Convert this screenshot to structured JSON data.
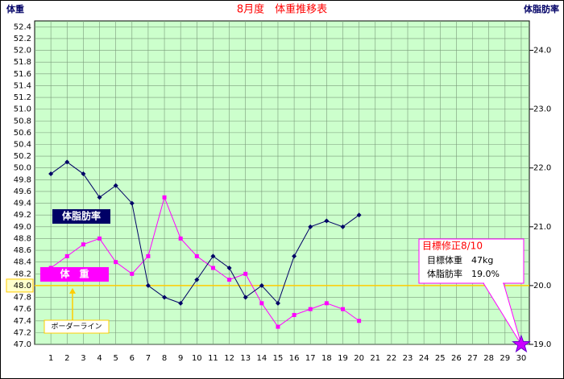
{
  "chart_data": {
    "type": "line",
    "title": "8月度　体重推移表",
    "ylabel": "体重",
    "y2label": "体脂肪率",
    "x": [
      1,
      2,
      3,
      4,
      5,
      6,
      7,
      8,
      9,
      10,
      11,
      12,
      13,
      14,
      15,
      16,
      17,
      18,
      19,
      20,
      21,
      22,
      23,
      24,
      25,
      26,
      27,
      28,
      29,
      30
    ],
    "xlim": [
      0,
      30.5
    ],
    "xticks": [
      1,
      2,
      3,
      4,
      5,
      6,
      7,
      8,
      9,
      10,
      11,
      12,
      13,
      14,
      15,
      16,
      17,
      18,
      19,
      20,
      21,
      22,
      23,
      24,
      25,
      26,
      27,
      28,
      29,
      30
    ],
    "ylim": [
      47.0,
      52.5
    ],
    "yticks": [
      {
        "value": 47.0,
        "label": "47.0"
      },
      {
        "value": 47.2,
        "label": "47.2"
      },
      {
        "value": 47.4,
        "label": "47.4"
      },
      {
        "value": 47.6,
        "label": "47.6"
      },
      {
        "value": 47.8,
        "label": "47.8"
      },
      {
        "value": 48.0,
        "label": "48.0"
      },
      {
        "value": 48.2,
        "label": "48.2"
      },
      {
        "value": 48.4,
        "label": "48.4"
      },
      {
        "value": 48.6,
        "label": "48.6"
      },
      {
        "value": 48.8,
        "label": "48.8"
      },
      {
        "value": 49.0,
        "label": "49.0"
      },
      {
        "value": 49.2,
        "label": "49.2"
      },
      {
        "value": 49.4,
        "label": "49.4"
      },
      {
        "value": 49.6,
        "label": "49.6"
      },
      {
        "value": 49.8,
        "label": "49.8"
      },
      {
        "value": 50.0,
        "label": "50.0"
      },
      {
        "value": 50.2,
        "label": "50.2"
      },
      {
        "value": 50.4,
        "label": "50.4"
      },
      {
        "value": 50.6,
        "label": "50.6"
      },
      {
        "value": 50.8,
        "label": "50.8"
      },
      {
        "value": 51.0,
        "label": "51.0"
      },
      {
        "value": 51.2,
        "label": "51.2"
      },
      {
        "value": 51.4,
        "label": "51.4"
      },
      {
        "value": 51.6,
        "label": "51.6"
      },
      {
        "value": 51.8,
        "label": "51.8"
      },
      {
        "value": 52.0,
        "label": "52.0"
      },
      {
        "value": 52.2,
        "label": "52.2"
      },
      {
        "value": 52.4,
        "label": "52.4"
      }
    ],
    "y2lim": [
      19.0,
      24.5
    ],
    "y2ticks": [
      {
        "value": 19.0,
        "label": "19.0"
      },
      {
        "value": 20.0,
        "label": "20.0"
      },
      {
        "value": 21.0,
        "label": "21.0"
      },
      {
        "value": 22.0,
        "label": "22.0"
      },
      {
        "value": 23.0,
        "label": "23.0"
      },
      {
        "value": 24.0,
        "label": "24.0"
      }
    ],
    "grid": true,
    "series": [
      {
        "name": "体　重",
        "color": "#ff00ff",
        "axis": "y",
        "values": [
          48.3,
          48.5,
          48.7,
          48.8,
          48.4,
          48.2,
          48.5,
          49.5,
          48.8,
          48.5,
          48.3,
          48.1,
          48.2,
          47.7,
          47.3,
          47.5,
          47.6,
          47.7,
          47.6,
          47.4,
          null,
          null,
          null,
          null,
          null,
          null,
          null,
          null,
          null,
          null
        ]
      },
      {
        "name": "体脂肪率",
        "color": "#000066",
        "axis": "y2",
        "values": [
          21.9,
          22.1,
          21.9,
          21.5,
          21.7,
          21.4,
          20.0,
          19.8,
          19.7,
          20.1,
          20.5,
          20.3,
          19.8,
          20.0,
          19.7,
          20.5,
          21.0,
          21.1,
          21.0,
          21.2,
          null,
          null,
          null,
          null,
          null,
          null,
          null,
          null,
          null,
          null
        ]
      }
    ],
    "border_line": {
      "value": 48.0,
      "label": "ボーダーライン",
      "color": "#ffcc00"
    },
    "target": {
      "x": 30,
      "value": 19.0,
      "color": "#cc00ff"
    },
    "target_note": [
      "目標修正8/10",
      "目標体重　47kg",
      "体脂肪率　19.0%"
    ]
  }
}
